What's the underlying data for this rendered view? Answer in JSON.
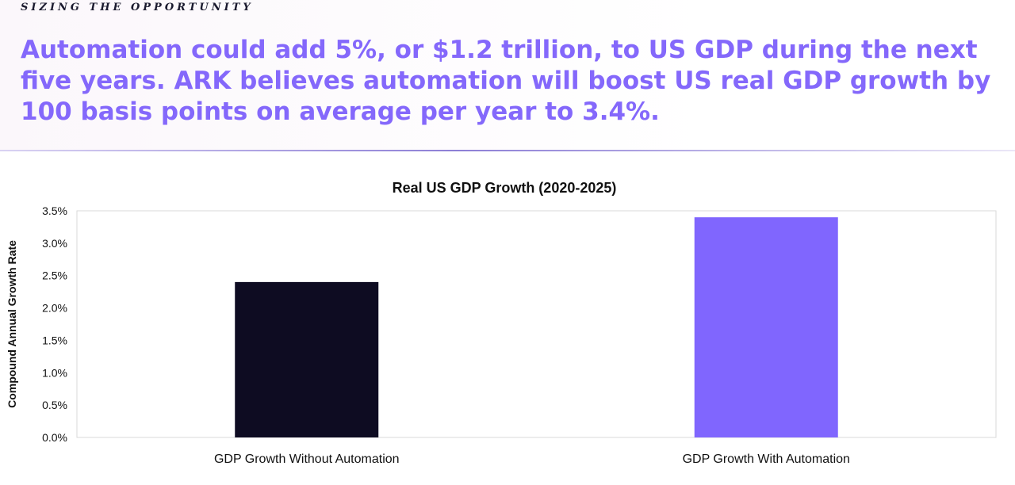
{
  "header": {
    "kicker": "SIZING THE OPPORTUNITY",
    "headline": "Automation could add 5%, or $1.2 trillion, to US GDP during the next five years. ARK believes automation will boost US real GDP growth by 100 basis points on average per year to 3.4%."
  },
  "colors": {
    "headline": "#8468fb",
    "bar_without": "#0e0c22",
    "bar_with": "#8066fe"
  },
  "chart_data": {
    "type": "bar",
    "title": "Real US GDP Growth (2020-2025)",
    "xlabel": "",
    "ylabel": "Compound Annual Growth Rate",
    "categories": [
      "GDP Growth Without Automation",
      "GDP Growth With Automation"
    ],
    "values": [
      2.4,
      3.4
    ],
    "unit": "%",
    "ylim": [
      0,
      3.5
    ],
    "yticks": [
      "0.0%",
      "0.5%",
      "1.0%",
      "1.5%",
      "2.0%",
      "2.5%",
      "3.0%",
      "3.5%"
    ],
    "ytick_values": [
      0,
      0.5,
      1.0,
      1.5,
      2.0,
      2.5,
      3.0,
      3.5
    ],
    "grid": false,
    "legend": "none"
  }
}
